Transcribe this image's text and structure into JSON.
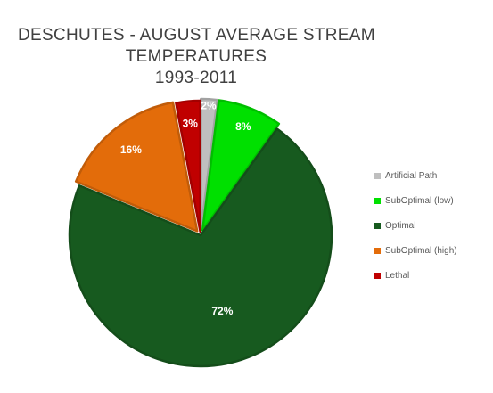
{
  "chart_data": {
    "type": "pie",
    "title_lines": [
      "DESCHUTES - AUGUST AVERAGE STREAM",
      "TEMPERATURES",
      "1993-2011"
    ],
    "slices": [
      {
        "label": "Artificial Path",
        "value": 2,
        "display": "2%",
        "color": "#bfbfbf"
      },
      {
        "label": "SubOptimal (low)",
        "value": 8,
        "display": "8%",
        "color": "#00e000"
      },
      {
        "label": "Optimal",
        "value": 72,
        "display": "72%",
        "color": "#175a1f"
      },
      {
        "label": "SubOptimal (high)",
        "value": 16,
        "display": "16%",
        "color": "#e36c0a"
      },
      {
        "label": "Lethal",
        "value": 3,
        "display": "3%",
        "color": "#c00000"
      }
    ],
    "legend_position": "right"
  }
}
